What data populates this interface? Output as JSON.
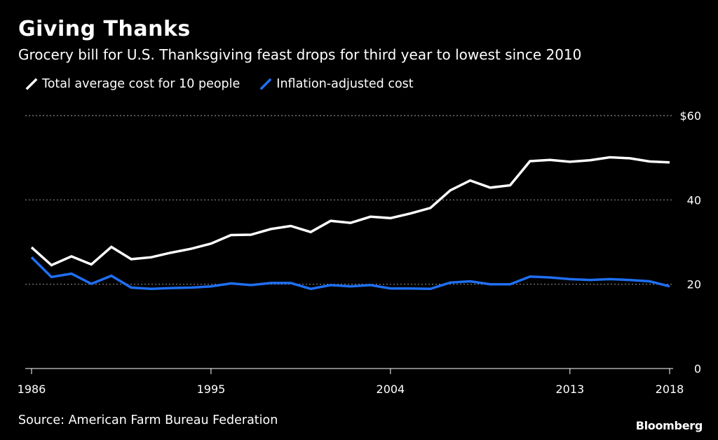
{
  "header": {
    "title": "Giving Thanks",
    "subtitle": "Grocery bill for U.S. Thanksgiving feast drops for third year to lowest since 2010"
  },
  "footer": {
    "source": "Source: American Farm Bureau Federation",
    "brand": "Bloomberg"
  },
  "colors": {
    "background": "#000000",
    "total_series": "#ffffff",
    "inflation_series": "#1f6ff2",
    "grid": "#8a8a8a"
  },
  "chart_data": {
    "type": "line",
    "title": "Giving Thanks",
    "subtitle": "Grocery bill for U.S. Thanksgiving feast drops for third year to lowest since 2010",
    "xlabel": "",
    "ylabel": "",
    "x": [
      1986,
      1987,
      1988,
      1989,
      1990,
      1991,
      1992,
      1993,
      1994,
      1995,
      1996,
      1997,
      1998,
      1999,
      2000,
      2001,
      2002,
      2003,
      2004,
      2005,
      2006,
      2007,
      2008,
      2009,
      2010,
      2011,
      2012,
      2013,
      2014,
      2015,
      2016,
      2017,
      2018
    ],
    "series": [
      {
        "name": "Total average cost for 10 people",
        "color": "#ffffff",
        "values": [
          28.74,
          24.51,
          26.61,
          24.7,
          28.85,
          25.95,
          26.39,
          27.49,
          28.4,
          29.64,
          31.66,
          31.75,
          33.09,
          33.83,
          32.37,
          35.04,
          34.56,
          36.02,
          35.68,
          36.78,
          38.1,
          42.26,
          44.61,
          42.91,
          43.47,
          49.2,
          49.48,
          49.04,
          49.41,
          50.11,
          49.87,
          49.12,
          48.9
        ]
      },
      {
        "name": "Inflation-adjusted cost",
        "color": "#1f6ff2",
        "values": [
          26.4,
          21.7,
          22.5,
          20.1,
          22.0,
          19.2,
          18.9,
          19.1,
          19.2,
          19.5,
          20.2,
          19.8,
          20.3,
          20.3,
          18.9,
          19.8,
          19.5,
          19.8,
          19.0,
          19.0,
          18.9,
          20.4,
          20.7,
          20.0,
          20.0,
          21.8,
          21.6,
          21.2,
          21.0,
          21.2,
          21.0,
          20.7,
          19.5
        ]
      }
    ],
    "x_ticks": [
      "1986",
      "1995",
      "2004",
      "2013",
      "2018"
    ],
    "y_ticks": [
      {
        "value": 0,
        "label": "0"
      },
      {
        "value": 20,
        "label": "20"
      },
      {
        "value": 40,
        "label": "40"
      },
      {
        "value": 60,
        "label": "$60"
      }
    ],
    "xlim": [
      1986,
      2018
    ],
    "ylim": [
      0,
      60
    ],
    "grid": true,
    "y_axis_side": "right",
    "legend_position": "top-left"
  }
}
